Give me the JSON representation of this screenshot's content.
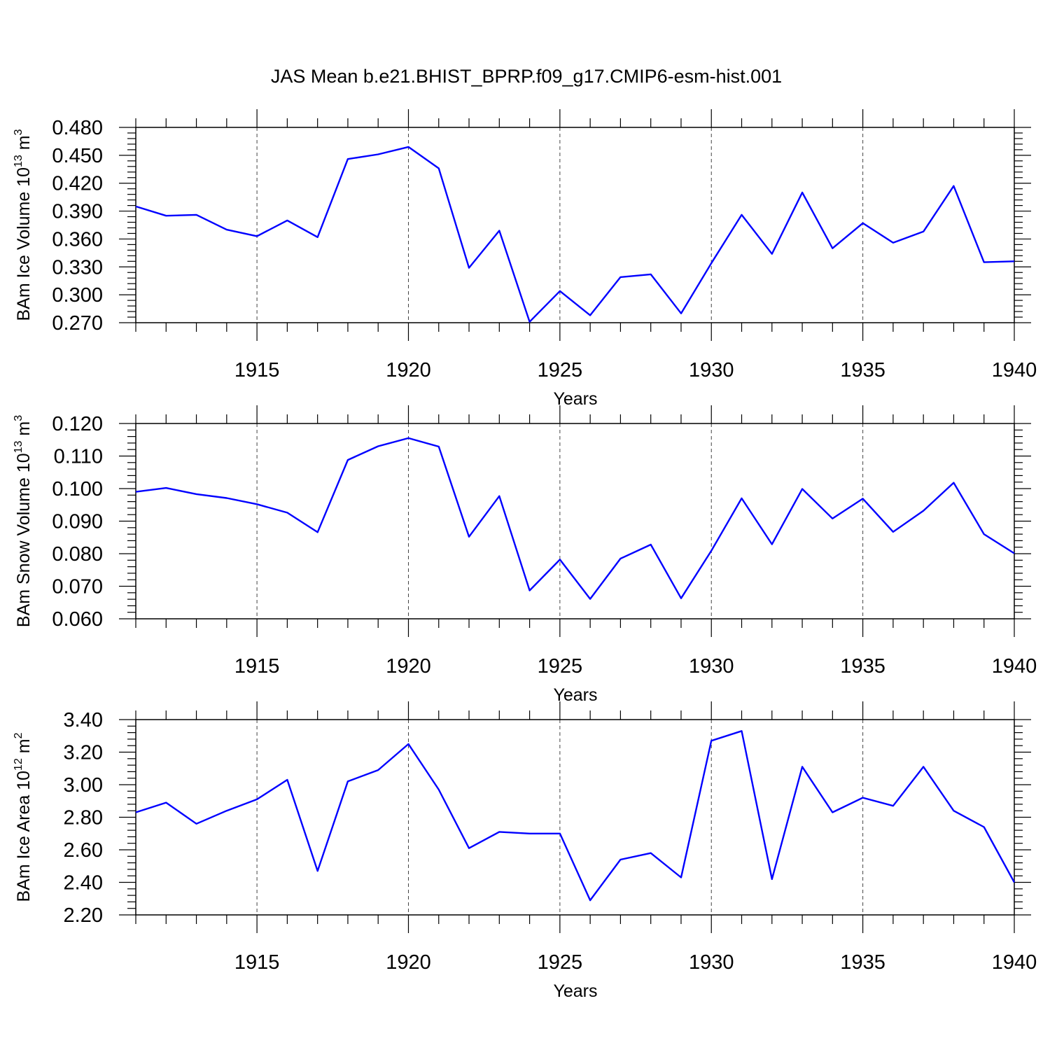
{
  "title": "JAS Mean b.e21.BHIST_BPRP.f09_g17.CMIP6-esm-hist.001",
  "colors": {
    "line": "#0000ff",
    "axis": "#000000",
    "grid": "#444444"
  },
  "chart_data": [
    {
      "type": "line",
      "ylabel": {
        "main": "BAm Ice Volume 10",
        "exp": "13",
        "unit": "m",
        "unit_exp": "3"
      },
      "xlabel": "Years",
      "xlim": [
        1911,
        1940
      ],
      "ylim": [
        0.27,
        0.48
      ],
      "yticks": [
        "0.270",
        "0.300",
        "0.330",
        "0.360",
        "0.390",
        "0.420",
        "0.450",
        "0.480"
      ],
      "xticks": [
        "1915",
        "1920",
        "1925",
        "1930",
        "1935",
        "1940"
      ],
      "grid": "vertical dashed at major x ticks",
      "series": [
        {
          "name": "BAm Ice Volume",
          "x": [
            1911,
            1912,
            1913,
            1914,
            1915,
            1916,
            1917,
            1918,
            1919,
            1920,
            1921,
            1922,
            1923,
            1924,
            1925,
            1926,
            1927,
            1928,
            1929,
            1930,
            1931,
            1932,
            1933,
            1934,
            1935,
            1936,
            1937,
            1938,
            1939,
            1940
          ],
          "values": [
            0.395,
            0.385,
            0.386,
            0.37,
            0.363,
            0.38,
            0.362,
            0.446,
            0.451,
            0.459,
            0.436,
            0.329,
            0.369,
            0.271,
            0.304,
            0.278,
            0.319,
            0.322,
            0.28,
            0.334,
            0.386,
            0.344,
            0.41,
            0.35,
            0.377,
            0.356,
            0.368,
            0.417,
            0.335,
            0.336
          ]
        }
      ]
    },
    {
      "type": "line",
      "ylabel": {
        "main": "BAm Snow Volume 10",
        "exp": "13",
        "unit": "m",
        "unit_exp": "3"
      },
      "xlabel": "Years",
      "xlim": [
        1911,
        1940
      ],
      "ylim": [
        0.06,
        0.12
      ],
      "yticks": [
        "0.060",
        "0.070",
        "0.080",
        "0.090",
        "0.100",
        "0.110",
        "0.120"
      ],
      "xticks": [
        "1915",
        "1920",
        "1925",
        "1930",
        "1935",
        "1940"
      ],
      "grid": "vertical dashed at major x ticks",
      "series": [
        {
          "name": "BAm Snow Volume",
          "x": [
            1911,
            1912,
            1913,
            1914,
            1915,
            1916,
            1917,
            1918,
            1919,
            1920,
            1921,
            1922,
            1923,
            1924,
            1925,
            1926,
            1927,
            1928,
            1929,
            1930,
            1931,
            1932,
            1933,
            1934,
            1935,
            1936,
            1937,
            1938,
            1939,
            1940
          ],
          "values": [
            0.099,
            0.1002,
            0.0983,
            0.0971,
            0.0952,
            0.0926,
            0.0866,
            0.1088,
            0.113,
            0.1155,
            0.1129,
            0.0852,
            0.0977,
            0.0687,
            0.0782,
            0.0661,
            0.0785,
            0.0828,
            0.0663,
            0.0809,
            0.097,
            0.0829,
            0.0999,
            0.0908,
            0.0969,
            0.0867,
            0.0932,
            0.1018,
            0.086,
            0.0801
          ]
        }
      ]
    },
    {
      "type": "line",
      "ylabel": {
        "main": "BAm Ice Area 10",
        "exp": "12",
        "unit": "m",
        "unit_exp": "2"
      },
      "xlabel": "Years",
      "xlim": [
        1911,
        1940
      ],
      "ylim": [
        2.2,
        3.4
      ],
      "yticks": [
        "2.20",
        "2.40",
        "2.60",
        "2.80",
        "3.00",
        "3.20",
        "3.40"
      ],
      "xticks": [
        "1915",
        "1920",
        "1925",
        "1930",
        "1935",
        "1940"
      ],
      "grid": "vertical dashed at major x ticks",
      "series": [
        {
          "name": "BAm Ice Area",
          "x": [
            1911,
            1912,
            1913,
            1914,
            1915,
            1916,
            1917,
            1918,
            1919,
            1920,
            1921,
            1922,
            1923,
            1924,
            1925,
            1926,
            1927,
            1928,
            1929,
            1930,
            1931,
            1932,
            1933,
            1934,
            1935,
            1936,
            1937,
            1938,
            1939,
            1940
          ],
          "values": [
            2.83,
            2.89,
            2.76,
            2.84,
            2.91,
            3.03,
            2.47,
            3.02,
            3.09,
            3.25,
            2.97,
            2.61,
            2.71,
            2.7,
            2.7,
            2.29,
            2.54,
            2.58,
            2.43,
            3.27,
            3.33,
            2.42,
            3.11,
            2.83,
            2.92,
            2.87,
            3.11,
            2.84,
            2.74,
            2.4
          ]
        }
      ]
    }
  ]
}
